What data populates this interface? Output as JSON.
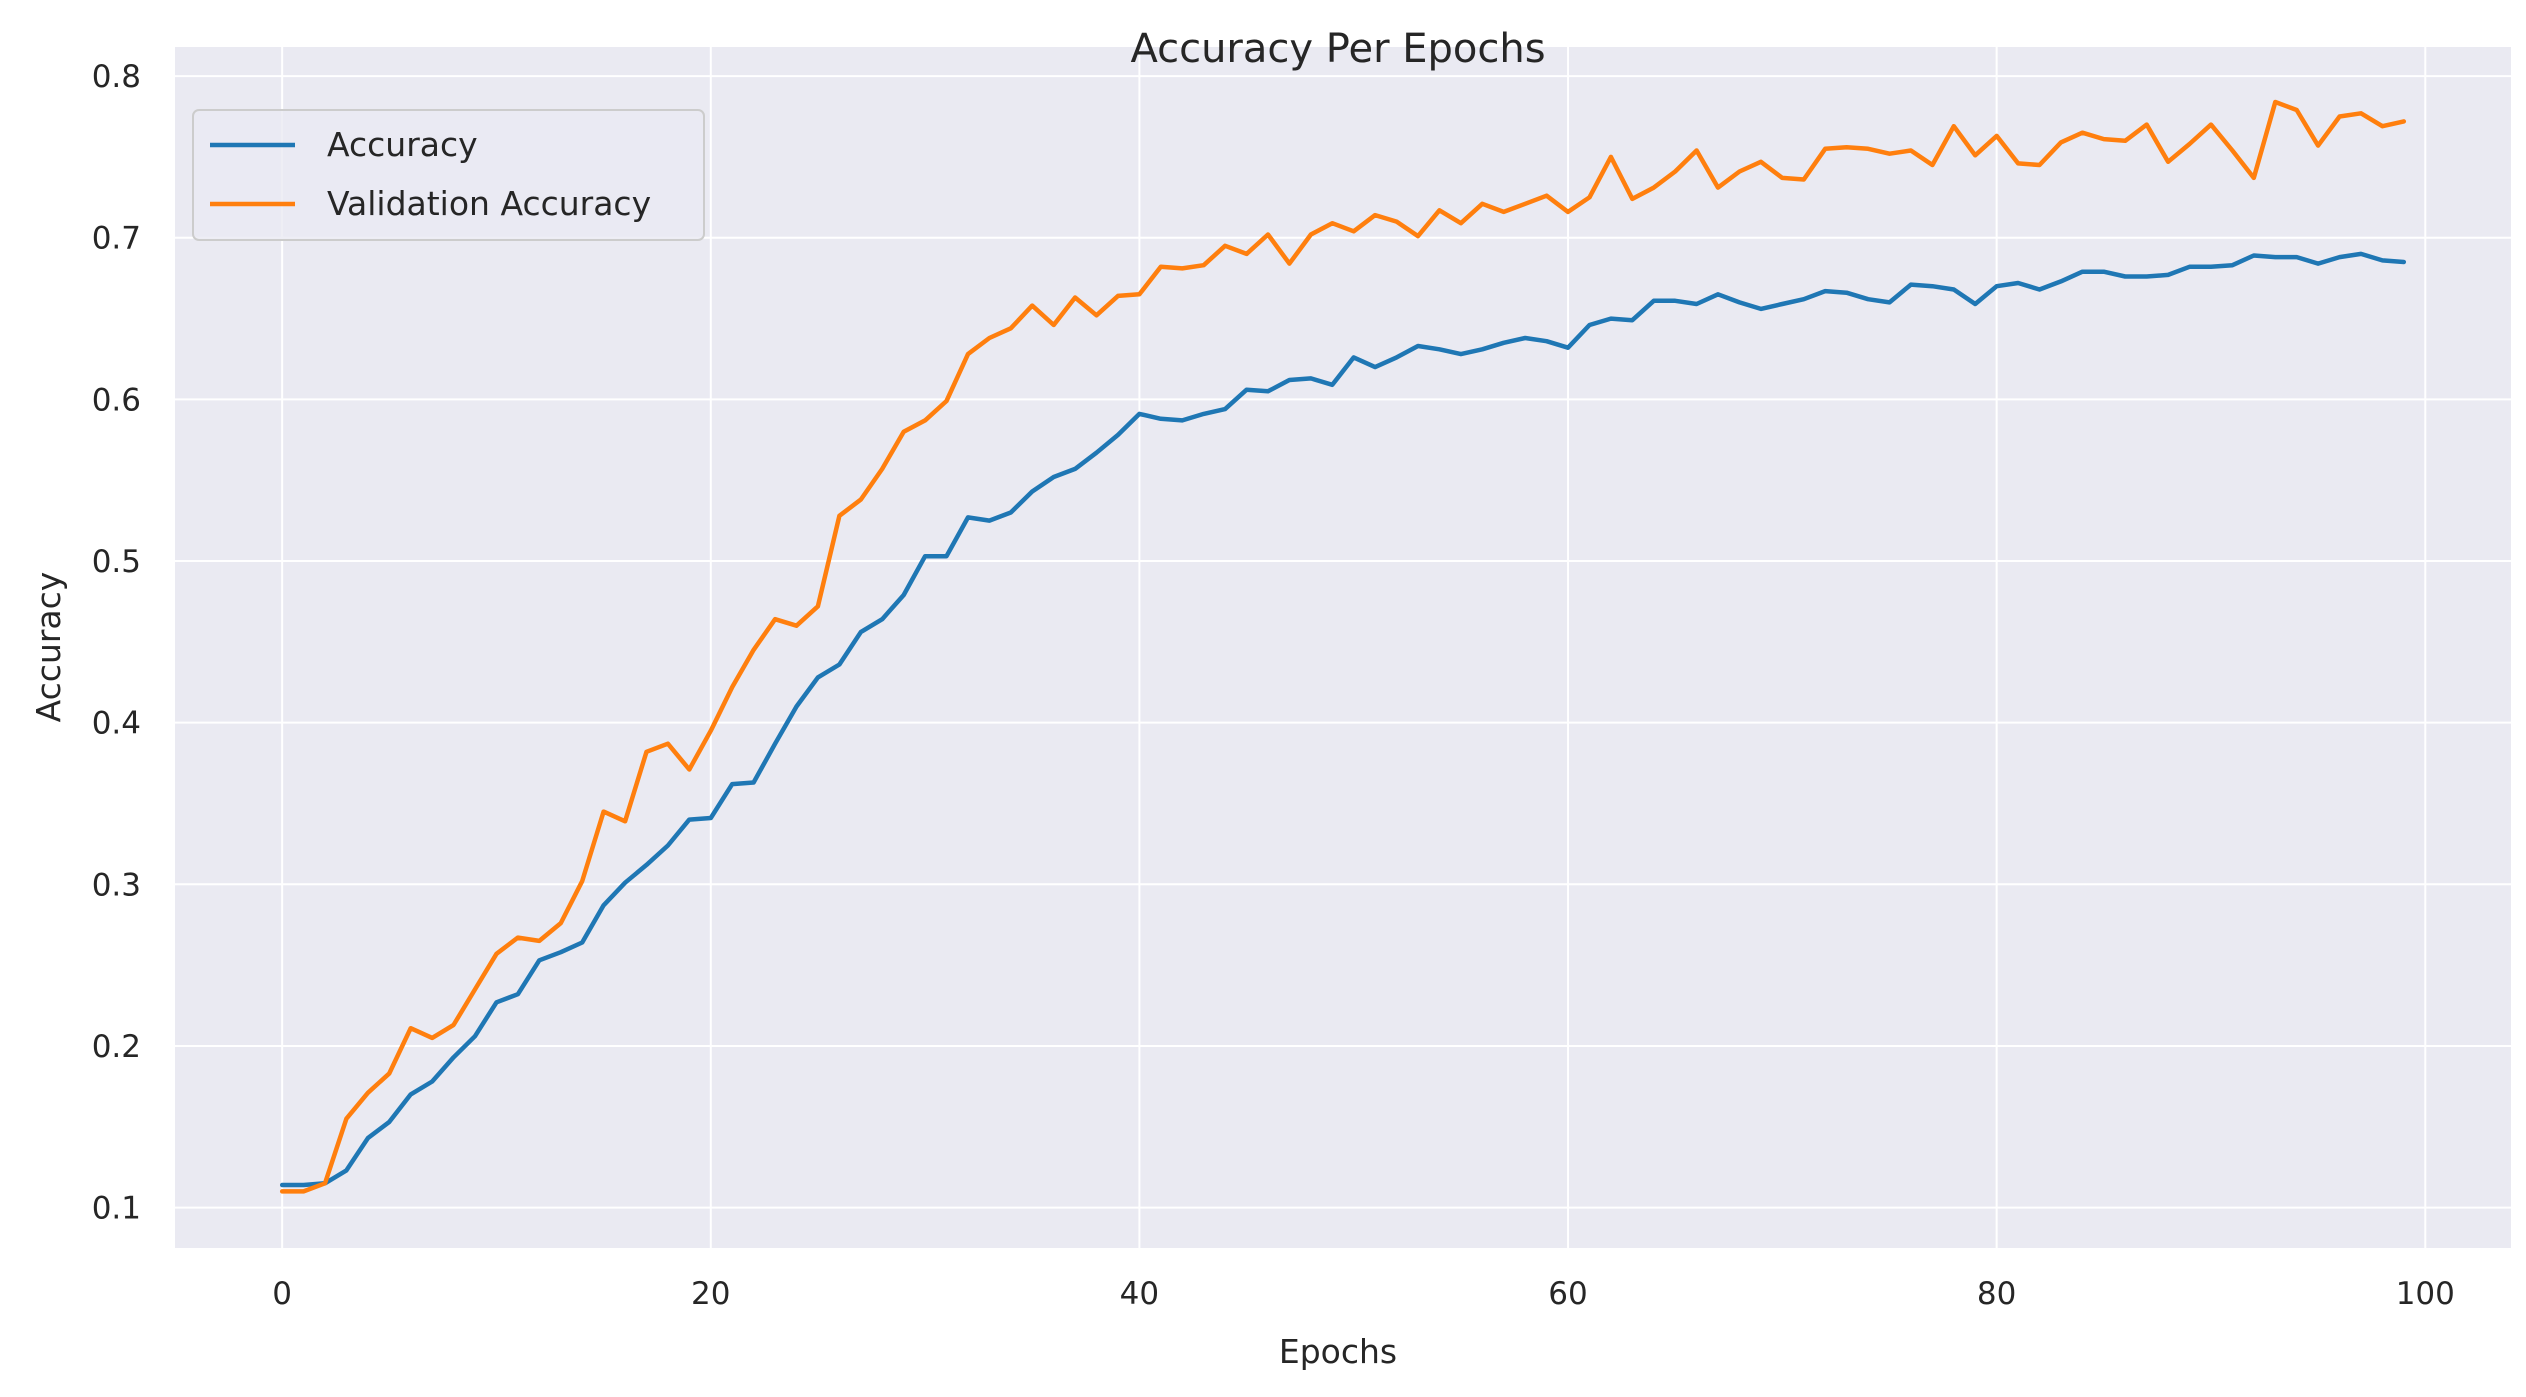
{
  "chart_data": {
    "type": "line",
    "title": "Accuracy Per Epochs",
    "xlabel": "Epochs",
    "ylabel": "Accuracy",
    "xlim": [
      -5,
      104
    ],
    "ylim": [
      0.075,
      0.818
    ],
    "xticks": [
      0,
      20,
      40,
      60,
      80,
      100
    ],
    "xtick_labels": [
      "0",
      "20",
      "40",
      "60",
      "80",
      "100"
    ],
    "yticks": [
      0.1,
      0.2,
      0.3,
      0.4,
      0.5,
      0.6,
      0.7,
      0.8
    ],
    "ytick_labels": [
      "0.1",
      "0.2",
      "0.3",
      "0.4",
      "0.5",
      "0.6",
      "0.7",
      "0.8"
    ],
    "grid": true,
    "legend_position": "top-left",
    "background": "#eaeaf2",
    "x": [
      0,
      1,
      2,
      3,
      4,
      5,
      6,
      7,
      8,
      9,
      10,
      11,
      12,
      13,
      14,
      15,
      16,
      17,
      18,
      19,
      20,
      21,
      22,
      23,
      24,
      25,
      26,
      27,
      28,
      29,
      30,
      31,
      32,
      33,
      34,
      35,
      36,
      37,
      38,
      39,
      40,
      41,
      42,
      43,
      44,
      45,
      46,
      47,
      48,
      49,
      50,
      51,
      52,
      53,
      54,
      55,
      56,
      57,
      58,
      59,
      60,
      61,
      62,
      63,
      64,
      65,
      66,
      67,
      68,
      69,
      70,
      71,
      72,
      73,
      74,
      75,
      76,
      77,
      78,
      79,
      80,
      81,
      82,
      83,
      84,
      85,
      86,
      87,
      88,
      89,
      90,
      91,
      92,
      93,
      94,
      95,
      96,
      97,
      98,
      99
    ],
    "series": [
      {
        "name": "Accuracy",
        "color": "#1f77b4",
        "values": [
          0.114,
          0.114,
          0.115,
          0.123,
          0.143,
          0.153,
          0.17,
          0.178,
          0.193,
          0.206,
          0.227,
          0.232,
          0.253,
          0.258,
          0.264,
          0.287,
          0.301,
          0.312,
          0.324,
          0.34,
          0.341,
          0.362,
          0.363,
          0.387,
          0.41,
          0.428,
          0.436,
          0.456,
          0.464,
          0.479,
          0.503,
          0.503,
          0.527,
          0.525,
          0.53,
          0.543,
          0.552,
          0.557,
          0.567,
          0.578,
          0.591,
          0.588,
          0.587,
          0.591,
          0.594,
          0.606,
          0.605,
          0.612,
          0.613,
          0.609,
          0.626,
          0.62,
          0.626,
          0.633,
          0.631,
          0.628,
          0.631,
          0.635,
          0.638,
          0.636,
          0.632,
          0.646,
          0.65,
          0.649,
          0.661,
          0.661,
          0.659,
          0.665,
          0.66,
          0.656,
          0.659,
          0.662,
          0.667,
          0.666,
          0.662,
          0.66,
          0.671,
          0.67,
          0.668,
          0.659,
          0.67,
          0.672,
          0.668,
          0.673,
          0.679,
          0.679,
          0.676,
          0.676,
          0.677,
          0.682,
          0.682,
          0.683,
          0.689,
          0.688,
          0.688,
          0.684,
          0.688,
          0.69,
          0.686,
          0.685
        ]
      },
      {
        "name": "Validation Accuracy",
        "color": "#ff7f0e",
        "values": [
          0.11,
          0.11,
          0.115,
          0.155,
          0.171,
          0.183,
          0.211,
          0.205,
          0.213,
          0.235,
          0.257,
          0.267,
          0.265,
          0.276,
          0.302,
          0.345,
          0.339,
          0.382,
          0.387,
          0.371,
          0.395,
          0.422,
          0.445,
          0.464,
          0.46,
          0.472,
          0.528,
          0.538,
          0.557,
          0.58,
          0.587,
          0.599,
          0.628,
          0.638,
          0.644,
          0.658,
          0.646,
          0.663,
          0.652,
          0.664,
          0.665,
          0.682,
          0.681,
          0.683,
          0.695,
          0.69,
          0.702,
          0.684,
          0.702,
          0.709,
          0.704,
          0.714,
          0.71,
          0.701,
          0.717,
          0.709,
          0.721,
          0.716,
          0.721,
          0.726,
          0.716,
          0.725,
          0.75,
          0.724,
          0.731,
          0.741,
          0.754,
          0.731,
          0.741,
          0.747,
          0.737,
          0.736,
          0.755,
          0.756,
          0.755,
          0.752,
          0.754,
          0.745,
          0.769,
          0.751,
          0.763,
          0.746,
          0.745,
          0.759,
          0.765,
          0.761,
          0.76,
          0.77,
          0.747,
          0.758,
          0.77,
          0.754,
          0.737,
          0.784,
          0.779,
          0.757,
          0.775,
          0.777,
          0.769,
          0.772
        ]
      }
    ]
  }
}
